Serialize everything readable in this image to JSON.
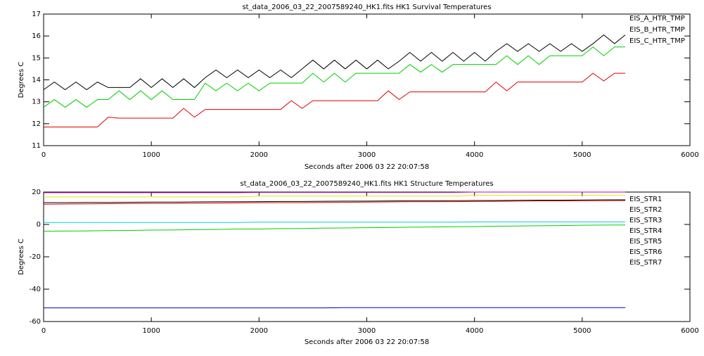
{
  "chart_data": [
    {
      "type": "line",
      "title": "st_data_2006_03_22_2007589240_HK1.fits HK1 Survival Temperatures",
      "x_label": "Seconds after 2006 03 22 20:07:58",
      "y_label": "Degrees C",
      "xlim": [
        0,
        6000
      ],
      "xticks": [
        0,
        1000,
        2000,
        3000,
        4000,
        5000,
        6000
      ],
      "ylim": [
        11,
        17
      ],
      "yticks": [
        11,
        12,
        13,
        14,
        15,
        16,
        17
      ],
      "legend": "upper right",
      "x": [
        0,
        100,
        200,
        300,
        400,
        500,
        600,
        700,
        800,
        900,
        1000,
        1100,
        1200,
        1300,
        1400,
        1500,
        1600,
        1700,
        1800,
        1900,
        2000,
        2100,
        2200,
        2300,
        2400,
        2500,
        2600,
        2700,
        2800,
        2900,
        3000,
        3100,
        3200,
        3300,
        3400,
        3500,
        3600,
        3700,
        3800,
        3900,
        4000,
        4100,
        4200,
        4300,
        4400,
        4500,
        4600,
        4700,
        4800,
        4900,
        5000,
        5100,
        5200,
        5300,
        5400
      ],
      "series": [
        {
          "name": "EIS_A_HTR_TMP",
          "color": "#000000",
          "values": [
            13.55,
            13.9,
            13.55,
            13.9,
            13.55,
            13.9,
            13.65,
            13.65,
            13.65,
            14.05,
            13.65,
            14.05,
            13.65,
            14.05,
            13.65,
            14.1,
            14.45,
            14.1,
            14.45,
            14.1,
            14.45,
            14.1,
            14.45,
            14.1,
            14.5,
            14.9,
            14.5,
            14.9,
            14.5,
            14.9,
            14.5,
            14.9,
            14.5,
            14.85,
            15.25,
            14.85,
            15.25,
            14.85,
            15.25,
            14.85,
            15.25,
            14.85,
            15.3,
            15.65,
            15.3,
            15.65,
            15.3,
            15.65,
            15.3,
            15.65,
            15.3,
            15.65,
            16.05,
            15.65,
            16.05
          ]
        },
        {
          "name": "EIS_B_HTR_TMP",
          "color": "#e00000",
          "values": [
            11.85,
            11.85,
            11.85,
            11.85,
            11.85,
            11.85,
            12.3,
            12.25,
            12.25,
            12.25,
            12.25,
            12.25,
            12.25,
            12.7,
            12.3,
            12.65,
            12.65,
            12.65,
            12.65,
            12.65,
            12.65,
            12.65,
            12.65,
            13.05,
            12.7,
            13.05,
            13.05,
            13.05,
            13.05,
            13.05,
            13.05,
            13.05,
            13.5,
            13.1,
            13.45,
            13.45,
            13.45,
            13.45,
            13.45,
            13.45,
            13.45,
            13.45,
            13.9,
            13.5,
            13.9,
            13.9,
            13.9,
            13.9,
            13.9,
            13.9,
            13.9,
            14.3,
            13.95,
            14.3,
            14.3
          ]
        },
        {
          "name": "EIS_C_HTR_TMP",
          "color": "#00d000",
          "values": [
            12.75,
            13.1,
            12.75,
            13.1,
            12.75,
            13.1,
            13.1,
            13.5,
            13.1,
            13.5,
            13.1,
            13.5,
            13.1,
            13.1,
            13.1,
            13.85,
            13.5,
            13.85,
            13.5,
            13.85,
            13.5,
            13.85,
            13.85,
            13.85,
            13.85,
            14.3,
            13.9,
            14.3,
            13.9,
            14.3,
            14.3,
            14.3,
            14.3,
            14.3,
            14.7,
            14.35,
            14.7,
            14.35,
            14.7,
            14.7,
            14.7,
            14.7,
            14.7,
            15.1,
            14.7,
            15.1,
            14.7,
            15.1,
            15.1,
            15.1,
            15.1,
            15.5,
            15.1,
            15.5,
            15.5
          ]
        }
      ]
    },
    {
      "type": "line",
      "title": "st_data_2006_03_22_2007589240_HK1.fits HK1 Structure Temperatures",
      "x_label": "Seconds after 2006 03 22 20:07:58",
      "y_label": "Degrees C",
      "xlim": [
        0,
        6000
      ],
      "xticks": [
        0,
        1000,
        2000,
        3000,
        4000,
        5000,
        6000
      ],
      "ylim": [
        -60,
        20
      ],
      "yticks": [
        -60,
        -40,
        -20,
        0,
        20
      ],
      "legend": "right",
      "x": [
        0,
        200,
        400,
        600,
        800,
        1000,
        1200,
        1400,
        1600,
        1800,
        2000,
        2200,
        2400,
        2600,
        2800,
        3000,
        3200,
        3400,
        3600,
        3800,
        4000,
        4200,
        4400,
        4600,
        4800,
        5000,
        5200,
        5400
      ],
      "series": [
        {
          "name": "EIS_STR1",
          "color": "#000000",
          "values": [
            13.5,
            13.5,
            13.6,
            13.6,
            13.7,
            13.8,
            13.8,
            13.9,
            14,
            14,
            14.1,
            14.2,
            14.2,
            14.3,
            14.4,
            14.4,
            14.5,
            14.6,
            14.6,
            14.7,
            14.8,
            14.8,
            14.9,
            15,
            15,
            15.1,
            15.2,
            15.2
          ]
        },
        {
          "name": "EIS_STR2",
          "color": "#e00000",
          "values": [
            12.5,
            12.6,
            12.7,
            12.8,
            12.9,
            13,
            13,
            13.1,
            13.2,
            13.3,
            13.4,
            13.5,
            13.5,
            13.6,
            13.7,
            13.8,
            13.9,
            14,
            14,
            14.1,
            14.2,
            14.3,
            14.4,
            14.5,
            14.5,
            14.6,
            14.7,
            14.8
          ]
        },
        {
          "name": "EIS_STR3",
          "color": "#00d000",
          "values": [
            -4.2,
            -4.1,
            -4,
            -3.8,
            -3.7,
            -3.5,
            -3.4,
            -3.2,
            -3.1,
            -2.9,
            -2.8,
            -2.6,
            -2.5,
            -2.3,
            -2.2,
            -2,
            -1.9,
            -1.7,
            -1.6,
            -1.4,
            -1.3,
            -1.1,
            -1,
            -0.8,
            -0.7,
            -0.5,
            -0.4,
            -0.3
          ]
        },
        {
          "name": "EIS_STR4",
          "color": "#0000c0",
          "values": [
            -51.6,
            -51.6,
            -51.6,
            -51.6,
            -51.6,
            -51.6,
            -51.6,
            -51.6,
            -51.6,
            -51.6,
            -51.6,
            -51.6,
            -51.6,
            -51.6,
            -51.4,
            -51.4,
            -51.4,
            -51.4,
            -51.4,
            -51.4,
            -51.4,
            -51.4,
            -51.4,
            -51.4,
            -51.4,
            -51.4,
            -51.4,
            -51.4
          ]
        },
        {
          "name": "EIS_STR5",
          "color": "#00d0d0",
          "values": [
            1.2,
            1.2,
            1.2,
            1.2,
            1.2,
            1.2,
            1.2,
            1.2,
            1.2,
            1.2,
            1.4,
            1.4,
            1.4,
            1.4,
            1.4,
            1.4,
            1.4,
            1.4,
            1.4,
            1.4,
            1.6,
            1.6,
            1.6,
            1.6,
            1.6,
            1.6,
            1.6,
            1.6
          ]
        },
        {
          "name": "EIS_STR6",
          "color": "#c000c0",
          "values": [
            19.6,
            19.6,
            19.6,
            19.6,
            19.6,
            19.6,
            19.6,
            19.6,
            19.6,
            19.6,
            19.8,
            19.8,
            19.8,
            19.8,
            19.8,
            19.8,
            19.8,
            19.8,
            19.8,
            19.8,
            20,
            20,
            20,
            20,
            20,
            20,
            20,
            20
          ]
        },
        {
          "name": "EIS_STR7",
          "color": "#e8e800",
          "values": [
            17,
            17,
            17,
            17,
            17,
            17,
            17,
            17,
            17,
            17,
            17.5,
            17.5,
            17.5,
            17.5,
            17.5,
            17.5,
            17.5,
            17.5,
            17.5,
            17.5,
            18,
            18,
            18,
            18,
            18,
            18,
            18,
            18
          ]
        }
      ]
    }
  ]
}
